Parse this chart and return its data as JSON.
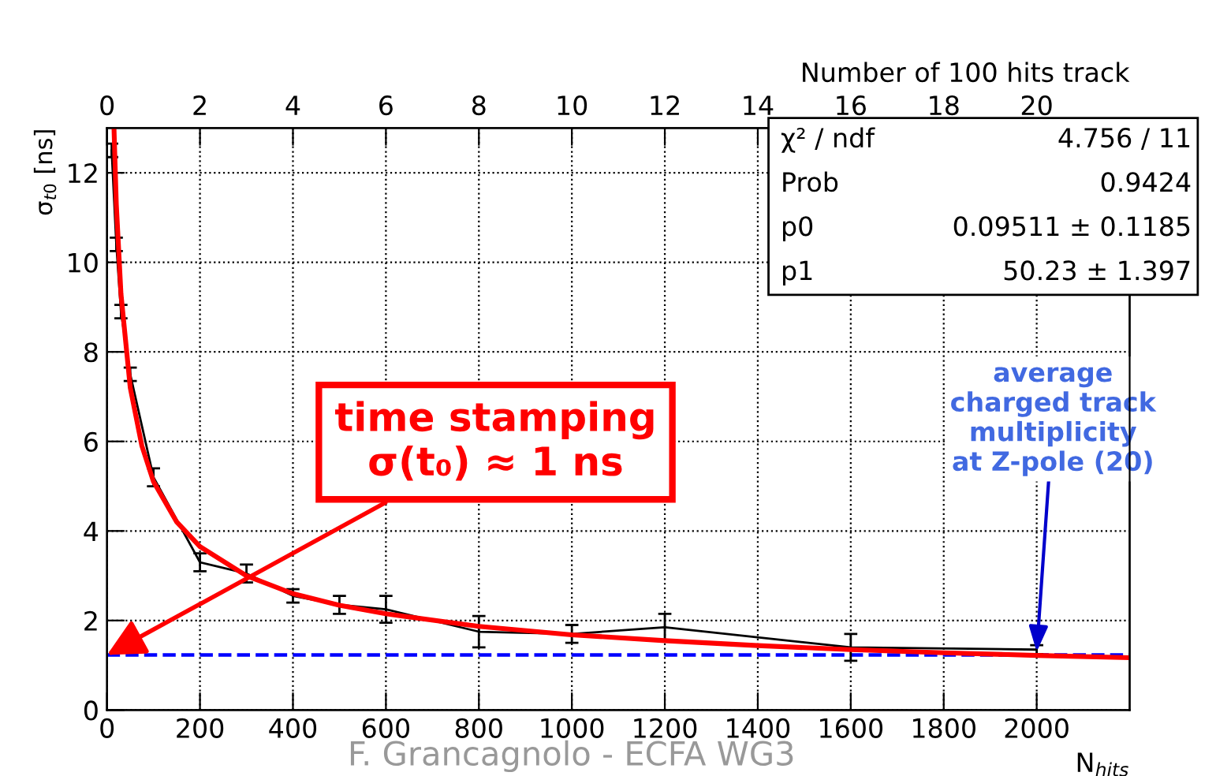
{
  "chart_data": {
    "type": "line",
    "xlabel": "N$_{hits}$",
    "ylabel": "σ$_{t0}$ [ns]",
    "x2label": "Number of 100 hits track",
    "xlim": [
      0,
      2200
    ],
    "xticks": [
      0,
      200,
      400,
      600,
      800,
      1000,
      1200,
      1400,
      1600,
      1800,
      2000
    ],
    "ylim": [
      0,
      13
    ],
    "yticks": [
      0,
      2,
      4,
      6,
      8,
      10,
      12
    ],
    "x2lim": [
      0,
      22
    ],
    "x2ticks": [
      0,
      2,
      4,
      6,
      8,
      10,
      12,
      14,
      16,
      18,
      20
    ],
    "grid": true,
    "marker": "none",
    "series": [
      {
        "color": "#000000",
        "x": [
          10,
          20,
          30,
          50,
          100,
          200,
          300,
          400,
          500,
          600,
          800,
          1000,
          1200,
          1600,
          2000
        ],
        "values": [
          12.5,
          10.4,
          8.9,
          7.5,
          5.2,
          3.3,
          3.05,
          2.55,
          2.35,
          2.25,
          1.75,
          1.7,
          1.85,
          1.4,
          1.35
        ],
        "errors": [
          0.15,
          0.15,
          0.15,
          0.15,
          0.2,
          0.2,
          0.2,
          0.15,
          0.2,
          0.3,
          0.35,
          0.2,
          0.3,
          0.3,
          0.1
        ]
      },
      {
        "type": "line",
        "color": "#ff0000",
        "x": [
          15,
          20,
          30,
          50,
          75,
          100,
          150,
          200,
          300,
          400,
          500,
          600,
          800,
          1000,
          1200,
          1400,
          1600,
          1800,
          2000,
          2200
        ],
        "values": [
          13.0,
          11.3,
          9.3,
          7.2,
          5.9,
          5.1,
          4.2,
          3.65,
          3.0,
          2.6,
          2.34,
          2.15,
          1.87,
          1.68,
          1.55,
          1.44,
          1.35,
          1.28,
          1.22,
          1.17
        ]
      }
    ],
    "ref_lines": [
      {
        "axis": "y",
        "value": 1.23,
        "color": "#0000ff",
        "line_style": "dashed"
      }
    ],
    "annotations": [
      {
        "text": "time stamping\nσ(t₀) ≈ 1 ns",
        "x": 0,
        "y": 1.23
      },
      {
        "text": "average\ncharged track\nmultiplicity\nat Z-pole (20)",
        "x": 2000,
        "y": 1.3
      },
      "χ² / ndf",
      "4.756 / 11",
      "Prob",
      "0.9424",
      "p0",
      "0.09511 ± 0.1185",
      "p1",
      "50.23 ± 1.397",
      "F. Grancagnolo - ECFA WG3"
    ]
  }
}
